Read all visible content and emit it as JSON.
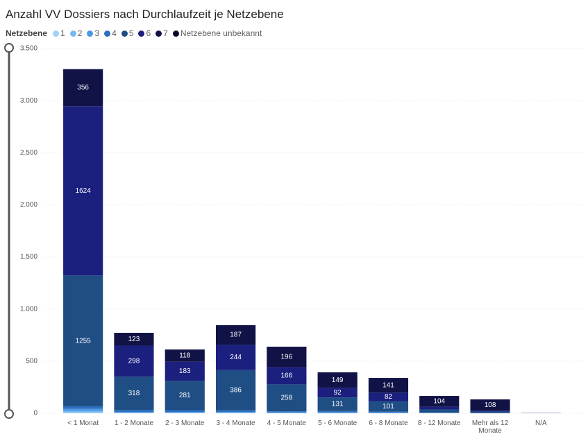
{
  "chart_data": {
    "type": "stacked_bar",
    "title": "Anzahl VV Dossiers nach Durchlaufzeit je Netzebene",
    "legend_title": "Netzebene",
    "categories": [
      "< 1 Monat",
      "1 - 2 Monate",
      "2 - 3 Monate",
      "3 - 4 Monate",
      "4 - 5 Monate",
      "5 - 6 Monate",
      "6 - 8 Monate",
      "8 - 12 Monate",
      "Mehr als 12 Monate",
      "N/A"
    ],
    "series": [
      {
        "name": "1",
        "color": "#9fd0f5",
        "values": [
          10,
          2,
          2,
          2,
          1,
          1,
          1,
          1,
          0,
          0
        ]
      },
      {
        "name": "2",
        "color": "#74b9f0",
        "values": [
          12,
          3,
          3,
          3,
          2,
          2,
          1,
          1,
          0,
          0
        ]
      },
      {
        "name": "3",
        "color": "#4a98e3",
        "values": [
          20,
          8,
          8,
          8,
          6,
          6,
          5,
          2,
          1,
          0
        ]
      },
      {
        "name": "4",
        "color": "#2d6fc0",
        "values": [
          25,
          20,
          17,
          15,
          10,
          12,
          8,
          3,
          1,
          0
        ]
      },
      {
        "name": "5",
        "color": "#1f4e85",
        "values": [
          1255,
          318,
          281,
          386,
          258,
          131,
          101,
          30,
          15,
          2
        ]
      },
      {
        "name": "6",
        "color": "#1b1f7e",
        "values": [
          1624,
          298,
          183,
          244,
          166,
          92,
          82,
          25,
          8,
          1
        ]
      },
      {
        "name": "7",
        "color": "#111347",
        "values": [
          356,
          123,
          118,
          187,
          196,
          149,
          141,
          104,
          108,
          0
        ]
      },
      {
        "name": "Netzebene unbekannt",
        "color": "#0a0a28",
        "values": [
          0,
          0,
          0,
          0,
          0,
          0,
          0,
          0,
          0,
          0
        ]
      }
    ],
    "ylim": [
      0,
      3500
    ],
    "yticks": [
      0,
      {
        "value": 500,
        "label": "500"
      },
      {
        "value": 1000,
        "label": "1.000"
      },
      {
        "value": 1500,
        "label": "1.500"
      },
      {
        "value": 2000,
        "label": "2.000"
      },
      {
        "value": 2500,
        "label": "2.500"
      },
      {
        "value": 3000,
        "label": "3.000"
      },
      {
        "value": 3500,
        "label": "3.500"
      }
    ],
    "grid": true
  }
}
